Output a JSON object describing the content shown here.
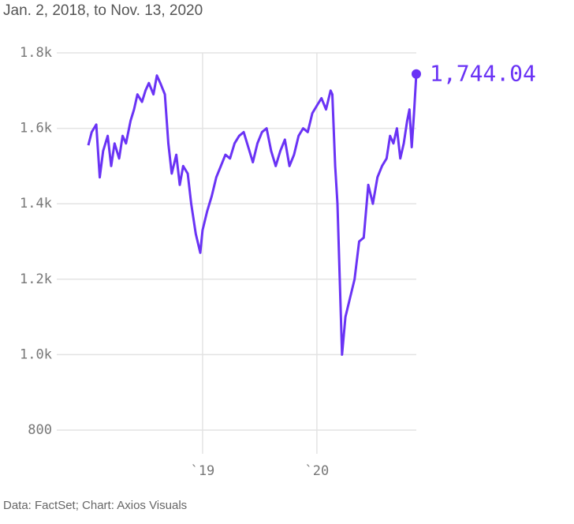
{
  "chart_data": {
    "type": "line",
    "subtitle": "Jan. 2, 2018, to Nov. 13, 2020",
    "source": "Data: FactSet; Chart: Axios Visuals",
    "last_value_label": "1,744.04",
    "xlim": [
      2018,
      2020.87
    ],
    "xticks": [
      {
        "value": 2019,
        "label": "`19"
      },
      {
        "value": 2020,
        "label": "`20"
      }
    ],
    "ylim": [
      800,
      1800
    ],
    "yticks": [
      {
        "value": 800,
        "label": "800"
      },
      {
        "value": 1000,
        "label": "1.0k"
      },
      {
        "value": 1200,
        "label": "1.2k"
      },
      {
        "value": 1400,
        "label": "1.4k"
      },
      {
        "value": 1600,
        "label": "1.6k"
      },
      {
        "value": 1800,
        "label": "1.8k"
      }
    ],
    "grid": true,
    "series": [
      {
        "color": "#6a33f5",
        "x": [
          2018.0,
          2018.03,
          2018.07,
          2018.1,
          2018.13,
          2018.17,
          2018.2,
          2018.23,
          2018.27,
          2018.3,
          2018.33,
          2018.37,
          2018.4,
          2018.43,
          2018.47,
          2018.5,
          2018.53,
          2018.57,
          2018.6,
          2018.63,
          2018.67,
          2018.7,
          2018.73,
          2018.77,
          2018.8,
          2018.83,
          2018.87,
          2018.9,
          2018.94,
          2018.98,
          2019.0,
          2019.04,
          2019.08,
          2019.12,
          2019.16,
          2019.2,
          2019.24,
          2019.28,
          2019.32,
          2019.36,
          2019.4,
          2019.44,
          2019.48,
          2019.52,
          2019.56,
          2019.6,
          2019.64,
          2019.68,
          2019.72,
          2019.76,
          2019.8,
          2019.84,
          2019.88,
          2019.92,
          2019.96,
          2020.0,
          2020.04,
          2020.08,
          2020.12,
          2020.135,
          2020.16,
          2020.18,
          2020.2,
          2020.22,
          2020.25,
          2020.29,
          2020.33,
          2020.37,
          2020.41,
          2020.45,
          2020.49,
          2020.53,
          2020.57,
          2020.61,
          2020.64,
          2020.67,
          2020.7,
          2020.73,
          2020.76,
          2020.79,
          2020.81,
          2020.83,
          2020.85,
          2020.87
        ],
        "values": [
          1555,
          1590,
          1610,
          1470,
          1540,
          1580,
          1500,
          1560,
          1520,
          1580,
          1560,
          1620,
          1650,
          1690,
          1670,
          1700,
          1720,
          1690,
          1740,
          1720,
          1690,
          1560,
          1480,
          1530,
          1450,
          1500,
          1480,
          1400,
          1320,
          1270,
          1330,
          1380,
          1420,
          1470,
          1500,
          1530,
          1520,
          1560,
          1580,
          1590,
          1550,
          1510,
          1560,
          1590,
          1600,
          1540,
          1500,
          1540,
          1570,
          1500,
          1530,
          1580,
          1600,
          1590,
          1640,
          1660,
          1680,
          1650,
          1700,
          1690,
          1500,
          1400,
          1200,
          1000,
          1100,
          1150,
          1200,
          1300,
          1310,
          1450,
          1400,
          1470,
          1500,
          1520,
          1580,
          1560,
          1600,
          1520,
          1560,
          1620,
          1650,
          1550,
          1640,
          1744.04
        ]
      }
    ]
  }
}
